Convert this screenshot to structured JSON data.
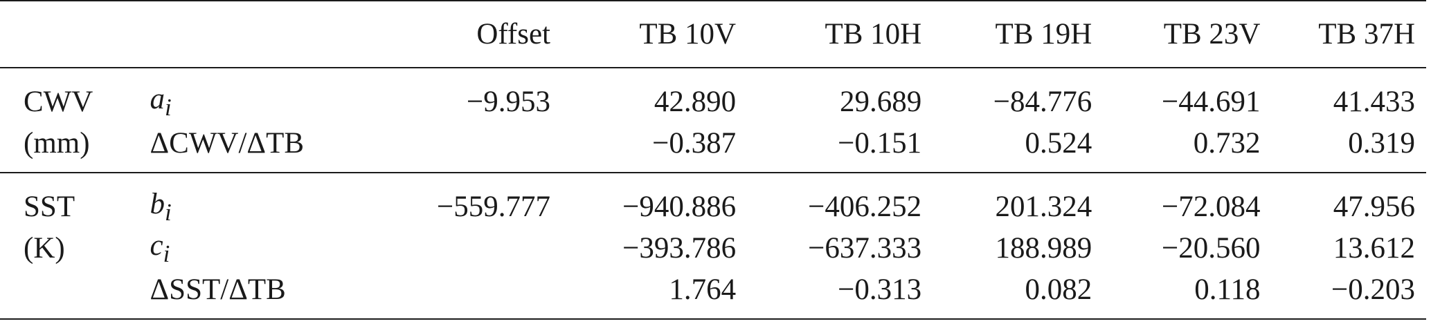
{
  "header": [
    "",
    "",
    "Offset",
    "TB 10V",
    "TB 10H",
    "TB 19H",
    "TB 23V",
    "TB 37H"
  ],
  "groups": {
    "cwv": {
      "label": "CWV",
      "unit": "(mm)",
      "rows": [
        {
          "sym": "a",
          "sub": "i",
          "offset": "−9.953",
          "tb10v": "42.890",
          "tb10h": "29.689",
          "tb19h": "−84.776",
          "tb23v": "−44.691",
          "tb37h": "41.433"
        },
        {
          "label": "ΔCWV/ΔTB",
          "offset": "",
          "tb10v": "−0.387",
          "tb10h": "−0.151",
          "tb19h": "0.524",
          "tb23v": "0.732",
          "tb37h": "0.319"
        }
      ]
    },
    "sst": {
      "label": "SST",
      "unit": "(K)",
      "rows": [
        {
          "sym": "b",
          "sub": "i",
          "offset": "−559.777",
          "tb10v": "−940.886",
          "tb10h": "−406.252",
          "tb19h": "201.324",
          "tb23v": "−72.084",
          "tb37h": "47.956"
        },
        {
          "sym": "c",
          "sub": "i",
          "offset": "",
          "tb10v": "−393.786",
          "tb10h": "−637.333",
          "tb19h": "188.989",
          "tb23v": "−20.560",
          "tb37h": "13.612"
        },
        {
          "label": "ΔSST/ΔTB",
          "offset": "",
          "tb10v": "1.764",
          "tb10h": "−0.313",
          "tb19h": "0.082",
          "tb23v": "0.118",
          "tb37h": "−0.203"
        }
      ]
    }
  }
}
